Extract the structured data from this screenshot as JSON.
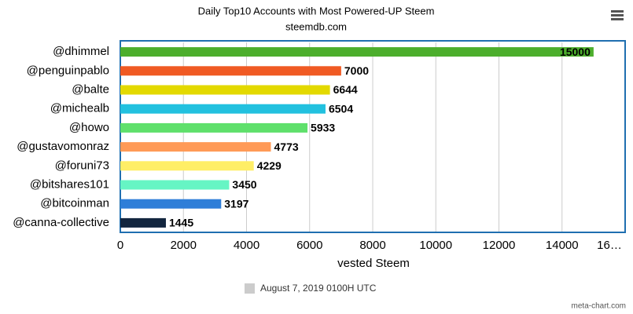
{
  "chart_data": {
    "type": "hbar",
    "title": "Daily Top10 Accounts with Most Powered-UP Steem",
    "subtitle": "steemdb.com",
    "x_label": "vested Steem",
    "credit": "meta-chart.com",
    "categories": [
      "@dhimmel",
      "@penguinpablo",
      "@balte",
      "@michealb",
      "@howo",
      "@gustavomonraz",
      "@foruni73",
      "@bitshares101",
      "@bitcoinman",
      "@canna-collective"
    ],
    "series": [
      {
        "name": "August 7, 2019 0100H UTC",
        "color": "#cccccc",
        "values": [
          15000,
          7000,
          6644,
          6504,
          5933,
          4773,
          4229,
          3450,
          3197,
          1445
        ],
        "colors": [
          "#4cae2c",
          "#f05a23",
          "#e3d900",
          "#22c1df",
          "#5fe06b",
          "#ff9a57",
          "#ffee66",
          "#66f5c4",
          "#2f7ed8",
          "#13263f"
        ]
      }
    ],
    "xlim": [
      0,
      16000
    ],
    "xticks": [
      0,
      2000,
      4000,
      6000,
      8000,
      10000,
      12000,
      14000,
      {
        "value": 16000,
        "label": "16…"
      }
    ],
    "grid": true
  }
}
